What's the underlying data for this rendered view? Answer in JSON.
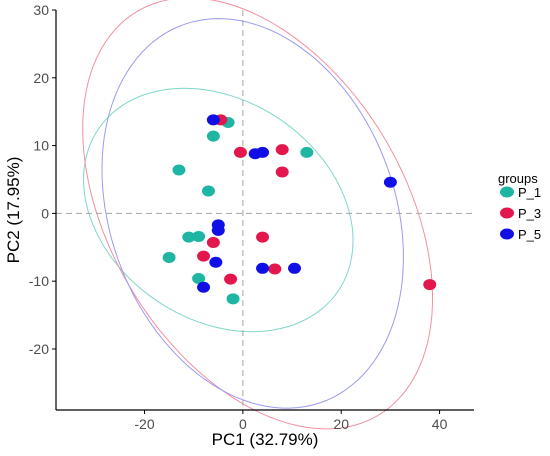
{
  "chart_data": {
    "type": "scatter",
    "xlabel": "PC1 (32.79%)",
    "ylabel": "PC2 (17.95%)",
    "xlim": [
      -38,
      47
    ],
    "ylim": [
      -29,
      30
    ],
    "xticks": [
      -20,
      0,
      20,
      40
    ],
    "yticks": [
      -20,
      -10,
      0,
      10,
      20,
      30
    ],
    "grid": false,
    "reference_lines": {
      "x": 0,
      "y": 0,
      "style": "dashed",
      "color": "#a6a6a6"
    },
    "legend": {
      "title": "groups",
      "position": "right"
    },
    "series": [
      {
        "name": "P_1",
        "color": "#1fb5a3",
        "points": [
          [
            -6,
            11.4
          ],
          [
            -3,
            13.4
          ],
          [
            13,
            9
          ],
          [
            -13,
            6.4
          ],
          [
            -7,
            3.3
          ],
          [
            -11,
            -3.5
          ],
          [
            -9,
            -3.4
          ],
          [
            -15,
            -6.5
          ],
          [
            -9,
            -9.6
          ],
          [
            -2,
            -12.6
          ]
        ],
        "ellipse": {
          "cx": -5,
          "cy": 0.5,
          "rx": 17,
          "ry": 28,
          "angle": 75,
          "color": "#7fd6cc"
        }
      },
      {
        "name": "P_3",
        "color": "#e3174b",
        "points": [
          [
            -4.5,
            13.8
          ],
          [
            -0.5,
            9
          ],
          [
            8,
            9.4
          ],
          [
            8,
            6.1
          ],
          [
            -6,
            -4.3
          ],
          [
            4,
            -3.5
          ],
          [
            -8,
            -6.3
          ],
          [
            -2.5,
            -9.7
          ],
          [
            6.5,
            -8.2
          ],
          [
            38,
            -10.5
          ]
        ],
        "ellipse": {
          "cx": 3,
          "cy": 0,
          "rx": 40,
          "ry": 26,
          "angle": -37,
          "color": "#f2909f"
        }
      },
      {
        "name": "P_5",
        "color": "#1010e6",
        "points": [
          [
            -6,
            13.8
          ],
          [
            2.5,
            8.8
          ],
          [
            4,
            9
          ],
          [
            30,
            4.6
          ],
          [
            -5,
            -1.7
          ],
          [
            -5,
            -2.5
          ],
          [
            -5.5,
            -7.2
          ],
          [
            -8,
            -10.9
          ],
          [
            4,
            -8.1
          ],
          [
            10.5,
            -8.1
          ]
        ],
        "ellipse": {
          "cx": 2,
          "cy": 0,
          "rx": 33,
          "ry": 26,
          "angle": -37,
          "color": "#9a9af2"
        }
      }
    ]
  }
}
